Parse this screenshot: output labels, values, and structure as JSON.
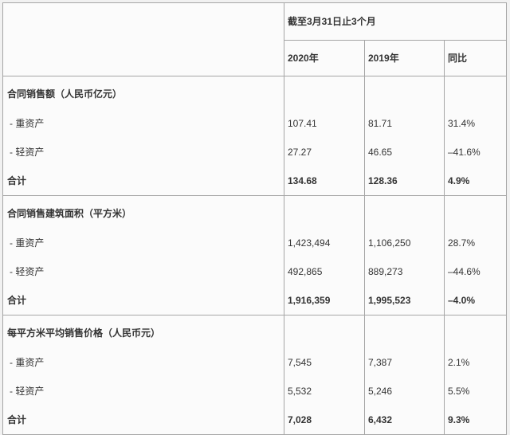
{
  "table": {
    "header": {
      "period": "截至3月31日止3个月",
      "columns": {
        "y2020": "2020年",
        "y2019": "2019年",
        "yoy": "同比"
      }
    },
    "sections": [
      {
        "title": "合同销售额（人民币亿元）",
        "rows": [
          {
            "label": "- 重资产",
            "y2020": "107.41",
            "y2019": "81.71",
            "yoy": "31.4%"
          },
          {
            "label": "- 轻资产",
            "y2020": "27.27",
            "y2019": "46.65",
            "yoy": "–41.6%"
          },
          {
            "label": "合计",
            "y2020": "134.68",
            "y2019": "128.36",
            "yoy": "4.9%"
          }
        ]
      },
      {
        "title": "合同销售建筑面积（平方米）",
        "rows": [
          {
            "label": "- 重资产",
            "y2020": "1,423,494",
            "y2019": "1,106,250",
            "yoy": "28.7%"
          },
          {
            "label": "- 轻资产",
            "y2020": "492,865",
            "y2019": "889,273",
            "yoy": "–44.6%"
          },
          {
            "label": "合计",
            "y2020": "1,916,359",
            "y2019": "1,995,523",
            "yoy": "–4.0%"
          }
        ]
      },
      {
        "title": "每平方米平均销售价格（人民币元）",
        "rows": [
          {
            "label": "- 重资产",
            "y2020": "7,545",
            "y2019": "7,387",
            "yoy": "2.1%"
          },
          {
            "label": "- 轻资产",
            "y2020": "5,532",
            "y2019": "5,246",
            "yoy": "5.5%"
          },
          {
            "label": "合计",
            "y2020": "7,028",
            "y2019": "6,432",
            "yoy": "9.3%"
          }
        ]
      }
    ],
    "colors": {
      "border": "#a6a6a6",
      "text": "#333333",
      "page_background": "#f1f1f1",
      "cell_background": "#fbfbfb"
    }
  }
}
